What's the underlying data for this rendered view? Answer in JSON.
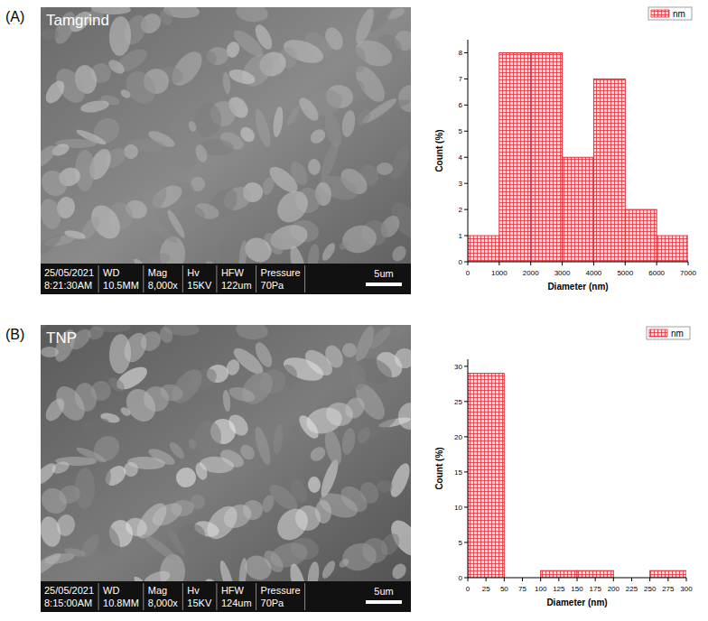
{
  "panels": [
    {
      "letter": "(A)",
      "image_label": "Tamgrind",
      "info": [
        [
          "25/05/2021",
          "8:21:30AM"
        ],
        [
          "WD",
          "10.5MM"
        ],
        [
          "Mag",
          "8,000x"
        ],
        [
          "Hv",
          "15KV"
        ],
        [
          "HFW",
          "122um"
        ],
        [
          "Pressure",
          "70Pa"
        ]
      ],
      "scale_bar": "5um"
    },
    {
      "letter": "(B)",
      "image_label": "TNP",
      "info": [
        [
          "25/05/2021",
          "8:15:00AM"
        ],
        [
          "WD",
          "10.8MM"
        ],
        [
          "Mag",
          "8,000x"
        ],
        [
          "Hv",
          "15KV"
        ],
        [
          "HFW",
          "124um"
        ],
        [
          "Pressure",
          "70Pa"
        ]
      ],
      "scale_bar": "5um"
    }
  ],
  "chart_data": [
    {
      "type": "histogram",
      "xlabel": "Diameter (nm)",
      "ylabel": "Count (%)",
      "bins": [
        0,
        1000,
        2000,
        3000,
        4000,
        5000,
        6000,
        7000
      ],
      "series": [
        {
          "name": "nm",
          "color": "#e0303a",
          "values": [
            1,
            8,
            8,
            4,
            7,
            2,
            1
          ]
        }
      ],
      "xlim": [
        0,
        7000
      ],
      "xticks": [
        0,
        1000,
        2000,
        3000,
        4000,
        5000,
        6000,
        7000
      ],
      "ylim": [
        0,
        8.5
      ],
      "yticks": [
        0,
        1,
        2,
        3,
        4,
        5,
        6,
        7,
        8
      ],
      "legend": "top-right"
    },
    {
      "type": "histogram",
      "xlabel": "Diameter (nm)",
      "ylabel": "Count (%)",
      "bins": [
        0,
        50,
        100,
        150,
        200,
        250,
        300
      ],
      "series": [
        {
          "name": "nm",
          "color": "#e0303a",
          "values": [
            29,
            0,
            1,
            1,
            0,
            1
          ]
        }
      ],
      "xlim": [
        0,
        300
      ],
      "xticks": [
        0,
        25,
        50,
        75,
        100,
        125,
        150,
        175,
        200,
        225,
        250,
        275,
        300
      ],
      "ylim": [
        0,
        31
      ],
      "yticks": [
        0,
        5,
        10,
        15,
        20,
        25,
        30
      ],
      "legend": "top-right"
    }
  ]
}
